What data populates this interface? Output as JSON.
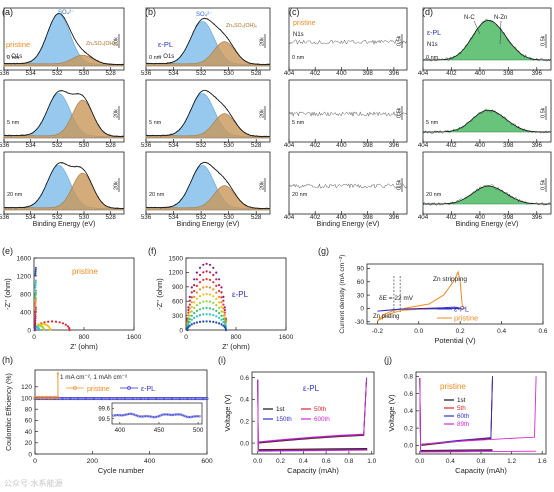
{
  "figure": {
    "panels": {
      "a": {
        "letter": "(a)",
        "so4": "SO₄²⁻",
        "znso": "Zn₄SO₄(OH)₆",
        "sample": "pristine",
        "line": "O1s",
        "depths": [
          "0 nm",
          "5 nm",
          "20 nm"
        ],
        "scale": "20k"
      },
      "b": {
        "letter": "(b)",
        "so4": "SO₄²⁻",
        "znso": "Zn₄SO₄(OH)₆",
        "sample": "ε-PL",
        "line": "O1s",
        "depths": [
          "0 nm",
          "5 nm",
          "20 nm"
        ],
        "scale": "20k"
      },
      "c": {
        "letter": "(c)",
        "sample": "pristine",
        "line": "N1s",
        "depths": [
          "0 nm",
          "5 nm",
          "20 nm"
        ],
        "scale": "0.5k"
      },
      "d": {
        "letter": "(d)",
        "nc": "N-C",
        "nzn": "N-Zn",
        "sample": "ε-PL",
        "line": "N1s",
        "depths": [
          "0 nm",
          "5 nm",
          "20 nm"
        ],
        "scale": "0.5k"
      },
      "e": {
        "letter": "(e)",
        "sample": "pristine"
      },
      "f": {
        "letter": "(f)",
        "sample": "ε-PL"
      },
      "g": {
        "letter": "(g)",
        "delta": "δE = 22 mV",
        "strip": "Zn stripping",
        "plate": "Zn plating"
      },
      "h": {
        "letter": "(h)",
        "cond": "1 mA cm⁻², 1 mAh cm⁻²"
      },
      "i": {
        "letter": "(i)",
        "sample": "ε-PL"
      },
      "j": {
        "letter": "(j)",
        "sample": "pristine"
      }
    },
    "colors": {
      "orange": "#f28a1f",
      "blue": "#2f2fd0",
      "o_blue": "#74b7ea",
      "o_tan": "#c9975a",
      "n_green": "#35b04f"
    },
    "watermark": "公众号·水系能源"
  },
  "chart_data": [
    {
      "id": "a",
      "type": "line",
      "title": "",
      "xlabel": "Binding Energy (eV)",
      "ylabel": "",
      "x_ticks": [
        536,
        534,
        532,
        530,
        528
      ],
      "xlim": [
        536,
        527
      ],
      "peaks": {
        "SO4": 531.9,
        "Zn4SO4(OH)6": 530.1
      },
      "series": [
        {
          "name": "0 nm",
          "values": {
            "so4_height": 1.0,
            "zn_height": 0.18
          }
        },
        {
          "name": "5 nm",
          "values": {
            "so4_height": 0.85,
            "zn_height": 0.72
          }
        },
        {
          "name": "20 nm",
          "values": {
            "so4_height": 0.85,
            "zn_height": 0.7
          }
        }
      ]
    },
    {
      "id": "b",
      "type": "line",
      "title": "",
      "xlabel": "Binding Energy (eV)",
      "ylabel": "",
      "x_ticks": [
        536,
        534,
        532,
        530,
        528
      ],
      "xlim": [
        536,
        527
      ],
      "peaks": {
        "SO4": 531.9,
        "Zn4SO4(OH)6": 530.3
      },
      "series": [
        {
          "name": "0 nm",
          "values": {
            "so4_height": 0.85,
            "zn_height": 0.45
          }
        },
        {
          "name": "5 nm",
          "values": {
            "so4_height": 0.85,
            "zn_height": 0.45
          }
        },
        {
          "name": "20 nm",
          "values": {
            "so4_height": 0.85,
            "zn_height": 0.45
          }
        }
      ]
    },
    {
      "id": "c",
      "type": "line",
      "title": "",
      "xlabel": "Binding Energy (eV)",
      "ylabel": "",
      "x_ticks": [
        404,
        402,
        400,
        398,
        396
      ],
      "xlim": [
        404,
        395
      ],
      "note": "noise only, no peak"
    },
    {
      "id": "d",
      "type": "line",
      "title": "",
      "xlabel": "Binding Energy (eV)",
      "ylabel": "",
      "x_ticks": [
        404,
        402,
        400,
        398,
        396
      ],
      "xlim": [
        404,
        395
      ],
      "peaks": {
        "N-C": 399.6,
        "N-Zn": 398.3
      },
      "series": [
        {
          "name": "0 nm",
          "values": {
            "height": 1.0
          }
        },
        {
          "name": "5 nm",
          "values": {
            "height": 0.55
          }
        },
        {
          "name": "20 nm",
          "values": {
            "height": 0.45
          }
        }
      ]
    },
    {
      "id": "e",
      "type": "scatter",
      "title": "",
      "xlabel": "Z' (ohm)",
      "ylabel": "-Z'' (ohm)",
      "x_ticks": [
        0,
        800,
        1600
      ],
      "y_ticks": [
        0,
        400,
        800,
        1200,
        1600
      ],
      "xlim": [
        0,
        1600
      ],
      "ylim": [
        0,
        1600
      ],
      "arcs": [
        {
          "diameter": 560,
          "height": 190,
          "color": "#e8202a"
        },
        {
          "diameter": 250,
          "height": 130,
          "color": "#f9c013"
        },
        {
          "diameter": 150,
          "height": 95,
          "color": "#a9d23a"
        },
        {
          "diameter": 70,
          "height": 60,
          "color": "#2ec4c8"
        }
      ],
      "tail_points": [
        {
          "x": 20,
          "y": 150
        },
        {
          "x": 25,
          "y": 300
        },
        {
          "x": 30,
          "y": 500
        },
        {
          "x": 30,
          "y": 700
        },
        {
          "x": 30,
          "y": 880
        },
        {
          "x": 30,
          "y": 1100
        },
        {
          "x": 30,
          "y": 1380
        }
      ]
    },
    {
      "id": "f",
      "type": "scatter",
      "title": "",
      "xlabel": "Z' (ohm)",
      "ylabel": "-Z'' (ohm)",
      "x_ticks": [
        0,
        800,
        1600
      ],
      "y_ticks": [
        0,
        300,
        600,
        900,
        1200,
        1500
      ],
      "xlim": [
        0,
        1600
      ],
      "ylim": [
        0,
        1500
      ],
      "arcs": [
        {
          "diameter": 620,
          "height": 1380
        },
        {
          "diameter": 620,
          "height": 1220
        },
        {
          "diameter": 620,
          "height": 1060
        },
        {
          "diameter": 620,
          "height": 900
        },
        {
          "diameter": 620,
          "height": 750
        },
        {
          "diameter": 620,
          "height": 600
        },
        {
          "diameter": 620,
          "height": 460
        },
        {
          "diameter": 620,
          "height": 330
        },
        {
          "diameter": 620,
          "height": 180
        }
      ],
      "arc_colors": [
        "#8a1a8a",
        "#cc1b4f",
        "#e6352a",
        "#f58a21",
        "#f9c013",
        "#9ed23a",
        "#39c27a",
        "#2ec4c8",
        "#1f4fb0"
      ]
    },
    {
      "id": "g",
      "type": "line",
      "title": "",
      "xlabel": "Potential (V)",
      "ylabel": "Current density (mA cm⁻²)",
      "x_ticks": [
        -0.2,
        0.0,
        0.2,
        0.4,
        0.6
      ],
      "y_ticks": [
        -30,
        0,
        30,
        60,
        90
      ],
      "xlim": [
        -0.25,
        0.6
      ],
      "ylim": [
        -35,
        100
      ],
      "series": [
        {
          "name": "ε-PL",
          "peak_x": 0.18,
          "peak_y": 3,
          "min_y": -6
        },
        {
          "name": "pristine",
          "peak_x": 0.19,
          "peak_y": 82,
          "min_y": -28
        }
      ]
    },
    {
      "id": "h",
      "type": "scatter",
      "title": "",
      "xlabel": "Cycle number",
      "ylabel": "Coulombic Efficiency (%)",
      "x_ticks": [
        0,
        200,
        400,
        600
      ],
      "y_ticks": [
        0,
        20,
        40,
        60,
        80,
        100,
        120
      ],
      "xlim": [
        0,
        600
      ],
      "ylim": [
        0,
        150
      ],
      "series": [
        {
          "name": "pristine",
          "values": {
            "stable": 100,
            "spike_cycle": 80,
            "spike_value": 150
          }
        },
        {
          "name": "ε-PL",
          "values": {
            "stable": 100
          }
        }
      ],
      "inset": {
        "x_ticks": [
          400,
          450,
          500
        ],
        "y_ticks": [
          99.5,
          99.6
        ],
        "xlim": [
          390,
          505
        ],
        "ylim": [
          99.45,
          99.65
        ],
        "value": 99.53
      }
    },
    {
      "id": "i",
      "type": "line",
      "title": "",
      "xlabel": "Capacity (mAh)",
      "ylabel": "Voltage (V)",
      "x_ticks": [
        0.0,
        0.2,
        0.4,
        0.6,
        0.8,
        1.0
      ],
      "y_ticks": [
        0.0,
        0.2,
        0.4,
        0.6
      ],
      "xlim": [
        -0.05,
        1.02
      ],
      "ylim": [
        -0.1,
        0.65
      ],
      "series": [
        {
          "name": "1st",
          "color": "#111111"
        },
        {
          "name": "50th",
          "color": "#e8202a"
        },
        {
          "name": "150th",
          "color": "#2f2fd0"
        },
        {
          "name": "600th",
          "color": "#d62bd6"
        }
      ]
    },
    {
      "id": "j",
      "type": "line",
      "title": "",
      "xlabel": "Capacity (mAh)",
      "ylabel": "Voltage (V)",
      "x_ticks": [
        0.0,
        0.4,
        0.8,
        1.2,
        1.6
      ],
      "y_ticks": [
        0.0,
        0.2,
        0.4,
        0.6,
        0.8
      ],
      "xlim": [
        -0.05,
        1.65
      ],
      "ylim": [
        -0.1,
        0.85
      ],
      "series": [
        {
          "name": "1st",
          "color": "#111111",
          "end": 0.95
        },
        {
          "name": "5th",
          "color": "#e8202a",
          "end": 0.95
        },
        {
          "name": "60th",
          "color": "#2f2fd0",
          "end": 0.95
        },
        {
          "name": "89th",
          "color": "#d62bd6",
          "end": 1.52
        }
      ]
    }
  ]
}
